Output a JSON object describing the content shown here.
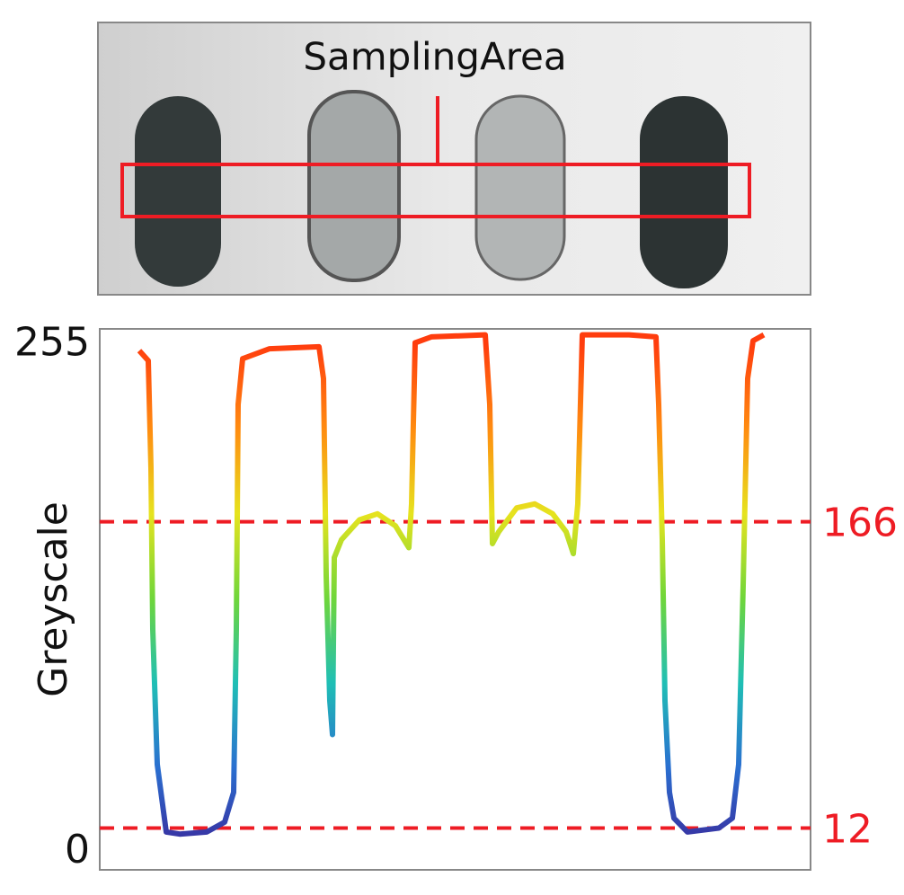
{
  "sampling_image": {
    "label": "SamplingArea"
  },
  "chart_data": {
    "type": "line",
    "y_label": "Greyscale",
    "x": [
      44,
      54,
      57,
      59,
      64,
      74,
      89,
      119,
      139,
      149,
      152,
      154,
      159,
      189,
      244,
      249,
      252,
      256,
      259,
      261,
      269,
      289,
      309,
      329,
      344,
      347,
      351,
      369,
      429,
      434,
      437,
      444,
      464,
      484,
      504,
      519,
      527,
      532,
      537,
      589,
      619,
      622,
      626,
      629,
      634,
      639,
      654,
      689,
      704,
      711,
      716,
      721,
      727,
      739
    ],
    "values": [
      252,
      247,
      193,
      112,
      44,
      10,
      9,
      10,
      15,
      30,
      112,
      225,
      248,
      253,
      254,
      238,
      139,
      76,
      59,
      148,
      157,
      167,
      170,
      164,
      153,
      175,
      256,
      259,
      260,
      225,
      155,
      161,
      173,
      175,
      170,
      161,
      150,
      175,
      260,
      260,
      259,
      225,
      157,
      76,
      30,
      17,
      10,
      12,
      17,
      44,
      134,
      238,
      257,
      260
    ],
    "xlim": [
      0,
      791
    ],
    "ylim": [
      -9,
      263
    ],
    "yticks": [
      0,
      255
    ],
    "hlines": [
      166,
      12
    ],
    "hline_color": "#ee1c24",
    "colormap": [
      "#3a2a9c",
      "#2a6fd0",
      "#1fbfb5",
      "#6fd63a",
      "#e6e31e",
      "#ff8c10",
      "#ff3d0e"
    ]
  }
}
